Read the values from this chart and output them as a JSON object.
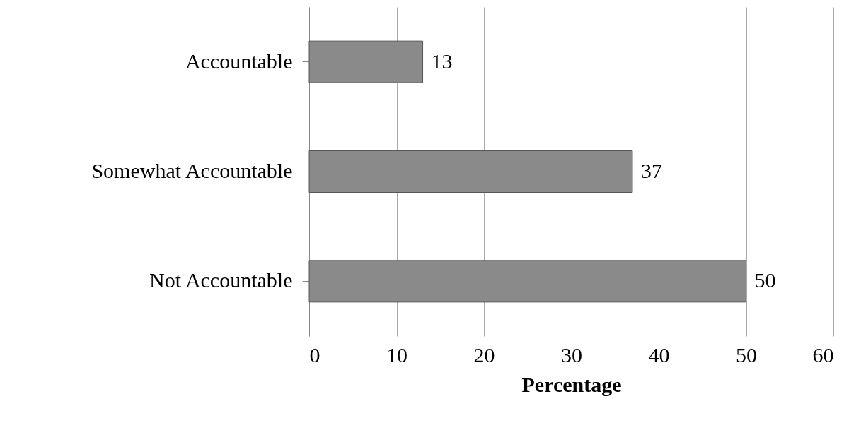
{
  "chart_data": {
    "type": "bar",
    "orientation": "horizontal",
    "categories": [
      "Accountable",
      "Somewhat Accountable",
      "Not Accountable"
    ],
    "series": [
      {
        "color": "#8a8a8a",
        "values": [
          13,
          37,
          50
        ]
      }
    ],
    "xlim": [
      0,
      60
    ],
    "xticks": [
      0,
      10,
      20,
      30,
      40,
      50,
      60
    ],
    "xlabel": "Percentage",
    "grid": "x",
    "data_labels": true
  }
}
